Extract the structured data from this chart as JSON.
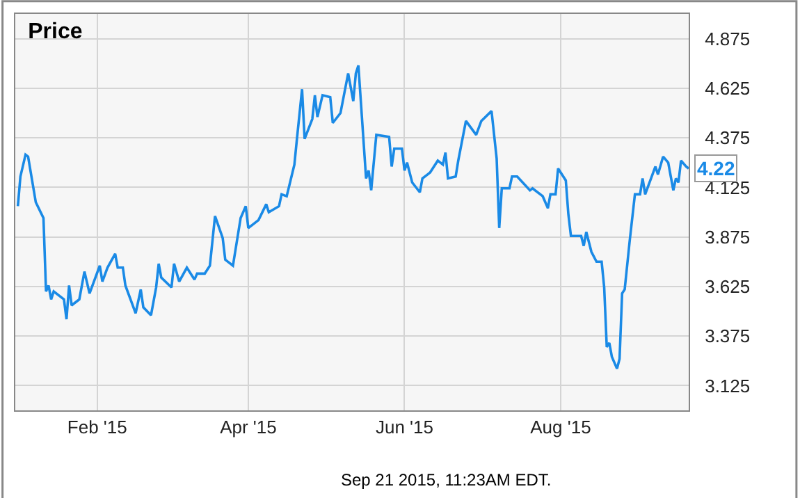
{
  "chart_data": {
    "type": "line",
    "title": "Price",
    "x": [
      "2015-01-01",
      "2015-01-02",
      "2015-01-04",
      "2015-01-05",
      "2015-01-08",
      "2015-01-11",
      "2015-01-12",
      "2015-01-13",
      "2015-01-14",
      "2015-01-15",
      "2015-01-19",
      "2015-01-20",
      "2015-01-21",
      "2015-01-22",
      "2015-01-25",
      "2015-01-27",
      "2015-01-29",
      "2015-02-02",
      "2015-02-03",
      "2015-02-05",
      "2015-02-08",
      "2015-02-09",
      "2015-02-11",
      "2015-02-12",
      "2015-02-16",
      "2015-02-18",
      "2015-02-19",
      "2015-02-22",
      "2015-02-24",
      "2015-02-25",
      "2015-02-26",
      "2015-03-02",
      "2015-03-03",
      "2015-03-05",
      "2015-03-08",
      "2015-03-11",
      "2015-03-12",
      "2015-03-15",
      "2015-03-17",
      "2015-03-19",
      "2015-03-22",
      "2015-03-23",
      "2015-03-26",
      "2015-03-29",
      "2015-03-31",
      "2015-04-01",
      "2015-04-05",
      "2015-04-08",
      "2015-04-09",
      "2015-04-13",
      "2015-04-14",
      "2015-04-16",
      "2015-04-19",
      "2015-04-20",
      "2015-04-22",
      "2015-04-23",
      "2015-04-26",
      "2015-04-27",
      "2015-04-28",
      "2015-04-30",
      "2015-05-03",
      "2015-05-04",
      "2015-05-07",
      "2015-05-10",
      "2015-05-12",
      "2015-05-13",
      "2015-05-14",
      "2015-05-17",
      "2015-05-18",
      "2015-05-19",
      "2015-05-21",
      "2015-05-26",
      "2015-05-27",
      "2015-05-28",
      "2015-05-31",
      "2015-06-01",
      "2015-06-02",
      "2015-06-04",
      "2015-06-07",
      "2015-06-08",
      "2015-06-10",
      "2015-06-11",
      "2015-06-14",
      "2015-06-16",
      "2015-06-17",
      "2015-06-18",
      "2015-06-21",
      "2015-06-22",
      "2015-06-25",
      "2015-06-29",
      "2015-07-01",
      "2015-07-05",
      "2015-07-07",
      "2015-07-08",
      "2015-07-09",
      "2015-07-12",
      "2015-07-13",
      "2015-07-15",
      "2015-07-20",
      "2015-07-21",
      "2015-07-25",
      "2015-07-27",
      "2015-07-28",
      "2015-07-30",
      "2015-07-31",
      "2015-08-03",
      "2015-08-04",
      "2015-08-05",
      "2015-08-09",
      "2015-08-10",
      "2015-08-11",
      "2015-08-13",
      "2015-08-15",
      "2015-08-17",
      "2015-08-18",
      "2015-08-19",
      "2015-08-20",
      "2015-08-21",
      "2015-08-23",
      "2015-08-24",
      "2015-08-25",
      "2015-08-26",
      "2015-08-28",
      "2015-08-30",
      "2015-09-01",
      "2015-09-02",
      "2015-09-03",
      "2015-09-07",
      "2015-09-08",
      "2015-09-10",
      "2015-09-12",
      "2015-09-14",
      "2015-09-15",
      "2015-09-16",
      "2015-09-17",
      "2015-09-19",
      "2015-09-20"
    ],
    "series": [
      {
        "color": "#1a8ae6",
        "values": [
          4.03,
          4.18,
          4.29,
          4.28,
          4.05,
          3.97,
          3.6,
          3.63,
          3.56,
          3.6,
          3.56,
          3.46,
          3.63,
          3.53,
          3.56,
          3.7,
          3.59,
          3.73,
          3.65,
          3.72,
          3.79,
          3.72,
          3.72,
          3.63,
          3.49,
          3.61,
          3.52,
          3.48,
          3.62,
          3.74,
          3.67,
          3.62,
          3.74,
          3.65,
          3.72,
          3.66,
          3.69,
          3.69,
          3.73,
          3.98,
          3.87,
          3.76,
          3.73,
          3.97,
          4.03,
          3.92,
          3.96,
          4.04,
          4.0,
          4.03,
          4.09,
          4.08,
          4.24,
          4.37,
          4.62,
          4.37,
          4.47,
          4.59,
          4.48,
          4.59,
          4.58,
          4.45,
          4.5,
          4.7,
          4.56,
          4.7,
          4.74,
          4.17,
          4.21,
          4.11,
          4.39,
          4.38,
          4.23,
          4.32,
          4.32,
          4.21,
          4.25,
          4.15,
          4.1,
          4.17,
          4.19,
          4.2,
          4.26,
          4.24,
          4.3,
          4.17,
          4.18,
          4.26,
          4.46,
          4.39,
          4.46,
          4.51,
          4.27,
          3.92,
          4.12,
          4.12,
          4.18,
          4.18,
          4.11,
          4.12,
          4.08,
          4.02,
          4.09,
          4.09,
          4.22,
          4.16,
          3.99,
          3.88,
          3.88,
          3.83,
          3.9,
          3.8,
          3.75,
          3.75,
          3.62,
          3.32,
          3.34,
          3.27,
          3.21,
          3.26,
          3.59,
          3.61,
          3.86,
          4.09,
          4.09,
          4.17,
          4.09,
          4.23,
          4.19,
          4.28,
          4.25,
          4.11,
          4.17,
          4.15,
          4.26,
          4.23,
          4.22
        ]
      }
    ],
    "xlim": [
      "2014-12-31",
      "2015-09-20"
    ],
    "xticks": [
      {
        "value": "2015-02-01",
        "label": "Feb '15"
      },
      {
        "value": "2015-04-01",
        "label": "Apr '15"
      },
      {
        "value": "2015-06-01",
        "label": "Jun '15"
      },
      {
        "value": "2015-08-01",
        "label": "Aug '15"
      }
    ],
    "ylim": [
      3.0,
      5.0
    ],
    "yticks": [
      3.125,
      3.375,
      3.625,
      3.875,
      4.125,
      4.375,
      4.625,
      4.875
    ],
    "grid": true,
    "marker": "none",
    "line_style": "solid",
    "annotations": [
      {
        "text": "4.22",
        "x": "2015-09-20",
        "y": 4.22
      },
      "Sep 21 2015, 11:23AM EDT."
    ]
  }
}
